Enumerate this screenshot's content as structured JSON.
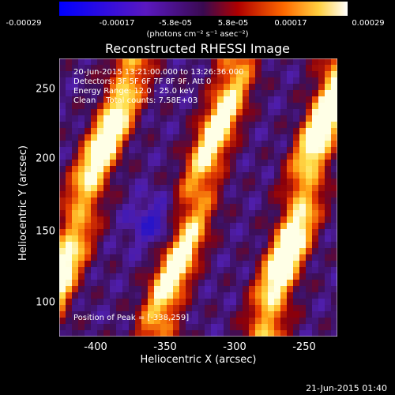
{
  "colorbar": {
    "ticks": [
      "-0.00029",
      "-0.00017",
      "-5.8e-05",
      "5.8e-05",
      "0.00017",
      "0.00029"
    ],
    "units": "(photons cm⁻² s⁻¹ asec⁻²)"
  },
  "title": "Reconstructed RHESSI Image",
  "info": {
    "line1": "20-Jun-2015 13:21:00.000 to 13:26:36.000",
    "line2": "Detectors: 3F 5F 6F 7F 8F 9F, Att 0",
    "line3": "Energy Range: 12.0 - 25.0 keV",
    "line4": "Clean    Total counts: 7.58E+03",
    "peak": "Position of Peak = [-338,259]"
  },
  "axes": {
    "xlabel": "Heliocentric X (arcsec)",
    "ylabel": "Heliocentric Y (arcsec)",
    "xticks": [
      "-400",
      "-350",
      "-300",
      "-250"
    ],
    "yticks": [
      "250",
      "200",
      "150",
      "100"
    ]
  },
  "datestamp": "21-Jun-2015 01:40",
  "colors": {
    "background": "#000000",
    "text": "#ffffff"
  }
}
